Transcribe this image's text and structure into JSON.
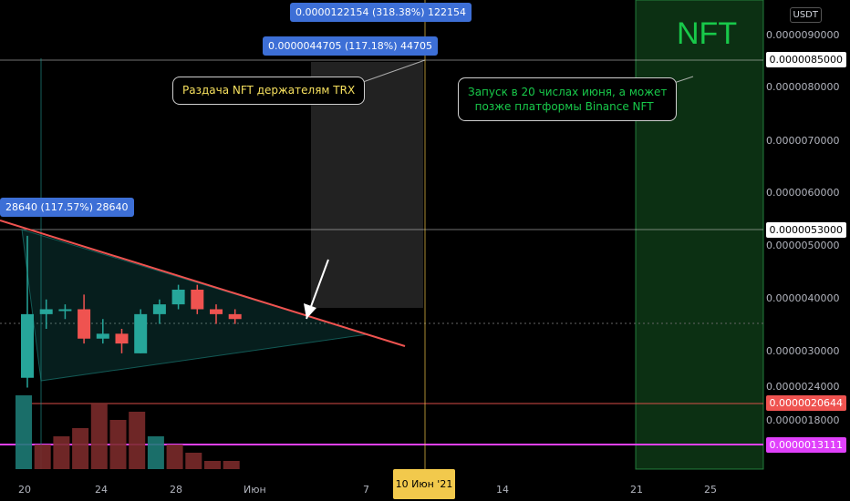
{
  "top_right": {
    "currency_badge": "USDT"
  },
  "bubbles": [
    "0.0000122154 (318.38%) 122154",
    "0.0000044705 (117.18%) 44705",
    "28640 (117.57%) 28640"
  ],
  "callouts": {
    "left": "Раздача NFT держателям TRX",
    "right": "Запуск в 20 числах июня, а может\n  позже платформы Binance NFT"
  },
  "nft_label": "NFT",
  "price_axis": {
    "labels": [
      "0.0000090000",
      "0.0000080000",
      "0.0000070000",
      "0.0000060000",
      "0.0000050000",
      "0.0000040000",
      "0.0000030000",
      "0.0000024000",
      "0.0000018000"
    ],
    "tags": [
      {
        "text": "0.0000085000",
        "style": "white"
      },
      {
        "text": "0.0000053000",
        "style": "white"
      },
      {
        "text": "0.0000020644",
        "style": "red"
      },
      {
        "text": "0.0000013111",
        "style": "magenta"
      }
    ]
  },
  "time_axis": {
    "labels": [
      "20",
      "24",
      "28",
      "Июн",
      "7",
      "14",
      "21",
      "25"
    ],
    "highlight": "10 Июн '21"
  },
  "chart_data": {
    "type": "candlestick",
    "candles": [
      {
        "o": 2.4e-06,
        "h": 5.3e-06,
        "l": 2.2e-06,
        "c": 3.7e-06
      },
      {
        "o": 3.7e-06,
        "h": 4e-06,
        "l": 3.4e-06,
        "c": 3.8e-06
      },
      {
        "o": 3.8e-06,
        "h": 3.9e-06,
        "l": 3.6e-06,
        "c": 3.8e-06
      },
      {
        "o": 3.8e-06,
        "h": 4.1e-06,
        "l": 3.1e-06,
        "c": 3.2e-06
      },
      {
        "o": 3.2e-06,
        "h": 3.6e-06,
        "l": 3.1e-06,
        "c": 3.3e-06
      },
      {
        "o": 3.3e-06,
        "h": 3.4e-06,
        "l": 2.9e-06,
        "c": 3.1e-06
      },
      {
        "o": 2.9e-06,
        "h": 3.8e-06,
        "l": 2.9e-06,
        "c": 3.7e-06
      },
      {
        "o": 3.7e-06,
        "h": 4e-06,
        "l": 3.5e-06,
        "c": 3.9e-06
      },
      {
        "o": 3.9e-06,
        "h": 4.3e-06,
        "l": 3.8e-06,
        "c": 4.2e-06
      },
      {
        "o": 4.2e-06,
        "h": 4.3e-06,
        "l": 3.7e-06,
        "c": 3.8e-06
      },
      {
        "o": 3.8e-06,
        "h": 3.9e-06,
        "l": 3.5e-06,
        "c": 3.7e-06
      },
      {
        "o": 3.7e-06,
        "h": 3.8e-06,
        "l": 3.5e-06,
        "c": 3.6e-06
      }
    ],
    "volumes": [
      {
        "v": 9,
        "up": true
      },
      {
        "v": 3,
        "up": false
      },
      {
        "v": 4,
        "up": false
      },
      {
        "v": 5,
        "up": false
      },
      {
        "v": 8,
        "up": false
      },
      {
        "v": 6,
        "up": false
      },
      {
        "v": 7,
        "up": false
      },
      {
        "v": 4,
        "up": true
      },
      {
        "v": 3,
        "up": false
      },
      {
        "v": 2,
        "up": false
      },
      {
        "v": 1,
        "up": false
      },
      {
        "v": 1,
        "up": false
      }
    ]
  }
}
